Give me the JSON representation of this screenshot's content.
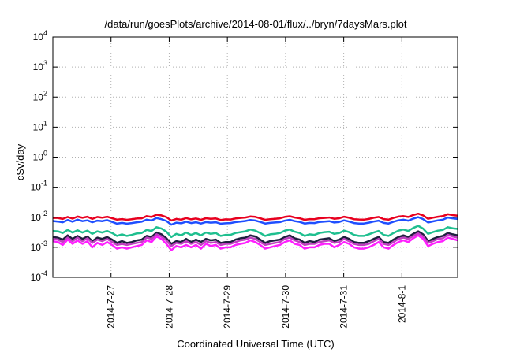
{
  "chart_data": {
    "type": "line",
    "title": "/data/run/goesPlots/archive/2014-08-01/flux/../bryn/7daysMars.plot",
    "xlabel": "Coordinated Universal Time (UTC)",
    "ylabel": "cSv/day",
    "yscale": "log",
    "ylim": [
      0.0001,
      10000
    ],
    "y_ticks": [
      {
        "base": "10",
        "exp": "-4",
        "value": 0.0001
      },
      {
        "base": "10",
        "exp": "-3",
        "value": 0.001
      },
      {
        "base": "10",
        "exp": "-2",
        "value": 0.01
      },
      {
        "base": "10",
        "exp": "-1",
        "value": 0.1
      },
      {
        "base": "10",
        "exp": "0",
        "value": 1
      },
      {
        "base": "10",
        "exp": "1",
        "value": 10
      },
      {
        "base": "10",
        "exp": "2",
        "value": 100
      },
      {
        "base": "10",
        "exp": "3",
        "value": 1000
      },
      {
        "base": "10",
        "exp": "4",
        "value": 10000
      }
    ],
    "xlim": [
      "2014-07-26 00:00",
      "2014-08-01 23:00"
    ],
    "x_ticks": [
      "2014-7-27",
      "2014-7-28",
      "2014-7-29",
      "2014-7-30",
      "2014-7-31",
      "2014-8-1"
    ],
    "grid": true,
    "series": [
      {
        "color": "#e8001f",
        "values": [
          0.0095,
          0.0095,
          0.0088,
          0.0102,
          0.009,
          0.0105,
          0.0096,
          0.0104,
          0.0088,
          0.0102,
          0.0097,
          0.0104,
          0.0093,
          0.0083,
          0.0087,
          0.0082,
          0.0086,
          0.0091,
          0.0092,
          0.0109,
          0.0102,
          0.0122,
          0.0115,
          0.0101,
          0.0078,
          0.0088,
          0.0083,
          0.0094,
          0.0085,
          0.0091,
          0.0082,
          0.0093,
          0.0089,
          0.0091,
          0.0081,
          0.0085,
          0.0084,
          0.0091,
          0.0095,
          0.0098,
          0.0106,
          0.0103,
          0.0092,
          0.0082,
          0.0086,
          0.0089,
          0.0092,
          0.0103,
          0.0108,
          0.0098,
          0.0093,
          0.0082,
          0.0087,
          0.0086,
          0.0093,
          0.0095,
          0.0098,
          0.0089,
          0.0093,
          0.0104,
          0.0096,
          0.0086,
          0.0084,
          0.0083,
          0.0088,
          0.0096,
          0.0102,
          0.0087,
          0.0083,
          0.0095,
          0.0105,
          0.0109,
          0.0102,
          0.0119,
          0.0132,
          0.0115,
          0.0089,
          0.0097,
          0.0104,
          0.0109,
          0.0126,
          0.0118,
          0.0113
        ]
      },
      {
        "color": "#1f4fff",
        "values": [
          0.0075,
          0.0072,
          0.0068,
          0.0081,
          0.0071,
          0.0083,
          0.0074,
          0.0079,
          0.0068,
          0.0077,
          0.0074,
          0.008,
          0.007,
          0.0061,
          0.0065,
          0.0061,
          0.0064,
          0.0068,
          0.0071,
          0.0083,
          0.0078,
          0.0094,
          0.0086,
          0.0075,
          0.0057,
          0.0066,
          0.0063,
          0.0071,
          0.0064,
          0.0068,
          0.0062,
          0.0069,
          0.0066,
          0.0068,
          0.0061,
          0.0063,
          0.0064,
          0.0069,
          0.0072,
          0.0075,
          0.0081,
          0.0078,
          0.007,
          0.0062,
          0.0065,
          0.0067,
          0.0069,
          0.0077,
          0.0082,
          0.0074,
          0.007,
          0.0062,
          0.0065,
          0.0064,
          0.007,
          0.0072,
          0.0074,
          0.0067,
          0.007,
          0.0079,
          0.0072,
          0.0064,
          0.0062,
          0.0062,
          0.0066,
          0.0072,
          0.0077,
          0.0065,
          0.0062,
          0.0071,
          0.0079,
          0.0083,
          0.0077,
          0.009,
          0.0101,
          0.0087,
          0.0067,
          0.0073,
          0.0079,
          0.0083,
          0.0098,
          0.0092,
          0.0088
        ]
      },
      {
        "color": "#1fbf8f",
        "values": [
          0.0035,
          0.0034,
          0.003,
          0.0038,
          0.0031,
          0.0037,
          0.0031,
          0.0036,
          0.0028,
          0.0034,
          0.0031,
          0.0035,
          0.003,
          0.0024,
          0.0027,
          0.0024,
          0.0026,
          0.0029,
          0.003,
          0.0038,
          0.0035,
          0.0047,
          0.0042,
          0.0033,
          0.0022,
          0.0028,
          0.0025,
          0.0031,
          0.0026,
          0.003,
          0.0025,
          0.0031,
          0.0028,
          0.003,
          0.0024,
          0.0026,
          0.0026,
          0.003,
          0.0032,
          0.0034,
          0.0039,
          0.0036,
          0.003,
          0.0024,
          0.0027,
          0.0028,
          0.003,
          0.0036,
          0.0039,
          0.0033,
          0.003,
          0.0024,
          0.0027,
          0.0026,
          0.003,
          0.0032,
          0.0033,
          0.0028,
          0.003,
          0.0036,
          0.0032,
          0.0026,
          0.0024,
          0.0024,
          0.0027,
          0.0031,
          0.0035,
          0.0026,
          0.0024,
          0.003,
          0.0036,
          0.0039,
          0.0035,
          0.0044,
          0.0052,
          0.0042,
          0.0028,
          0.0032,
          0.0036,
          0.0038,
          0.0047,
          0.0043,
          0.0041
        ]
      },
      {
        "color": "#1f1f3f",
        "values": [
          0.0022,
          0.0021,
          0.0018,
          0.0025,
          0.0019,
          0.0024,
          0.0019,
          0.0023,
          0.0016,
          0.0021,
          0.0019,
          0.0022,
          0.0018,
          0.0014,
          0.0016,
          0.0014,
          0.0015,
          0.0017,
          0.0018,
          0.0024,
          0.0022,
          0.0031,
          0.0027,
          0.002,
          0.0013,
          0.0016,
          0.0015,
          0.0019,
          0.0015,
          0.0018,
          0.0015,
          0.0019,
          0.0017,
          0.0018,
          0.0014,
          0.0015,
          0.0015,
          0.0018,
          0.002,
          0.0021,
          0.0025,
          0.0023,
          0.0018,
          0.0014,
          0.0016,
          0.0017,
          0.0018,
          0.0022,
          0.0025,
          0.002,
          0.0018,
          0.0014,
          0.0016,
          0.0015,
          0.0018,
          0.0019,
          0.002,
          0.0016,
          0.0018,
          0.0022,
          0.0019,
          0.0015,
          0.0014,
          0.0014,
          0.0016,
          0.0019,
          0.0022,
          0.0015,
          0.0014,
          0.0018,
          0.0022,
          0.0025,
          0.0022,
          0.0028,
          0.0034,
          0.0027,
          0.0016,
          0.0019,
          0.0022,
          0.0024,
          0.003,
          0.0027,
          0.0025
        ]
      },
      {
        "color": "#c040c0",
        "values": [
          0.0019,
          0.0018,
          0.0015,
          0.0021,
          0.0016,
          0.0021,
          0.0016,
          0.002,
          0.0014,
          0.0018,
          0.0016,
          0.0019,
          0.0015,
          0.0012,
          0.0013,
          0.0012,
          0.0013,
          0.0014,
          0.0015,
          0.0021,
          0.0019,
          0.0027,
          0.0023,
          0.0017,
          0.0011,
          0.0014,
          0.0013,
          0.0016,
          0.0013,
          0.0015,
          0.0012,
          0.0016,
          0.0014,
          0.0015,
          0.0012,
          0.0013,
          0.0013,
          0.0015,
          0.0017,
          0.0018,
          0.0021,
          0.0019,
          0.0015,
          0.0012,
          0.0013,
          0.0014,
          0.0015,
          0.0019,
          0.0021,
          0.0017,
          0.0015,
          0.0012,
          0.0013,
          0.0013,
          0.0015,
          0.0016,
          0.0017,
          0.0014,
          0.0015,
          0.0019,
          0.0016,
          0.0013,
          0.0012,
          0.0012,
          0.0013,
          0.0016,
          0.0019,
          0.0013,
          0.0012,
          0.0015,
          0.0019,
          0.0021,
          0.0019,
          0.0024,
          0.0029,
          0.0023,
          0.0014,
          0.0016,
          0.0019,
          0.002,
          0.0026,
          0.0023,
          0.0021
        ]
      },
      {
        "color": "#ff1fff",
        "values": [
          0.0016,
          0.0015,
          0.0012,
          0.0018,
          0.0013,
          0.0017,
          0.0013,
          0.0016,
          0.001,
          0.0014,
          0.0012,
          0.0015,
          0.0012,
          0.0009,
          0.001,
          0.0009,
          0.001,
          0.0011,
          0.0012,
          0.0017,
          0.0015,
          0.0023,
          0.0019,
          0.0013,
          0.0008,
          0.0011,
          0.001,
          0.0012,
          0.001,
          0.0012,
          0.0009,
          0.0013,
          0.0011,
          0.0012,
          0.0009,
          0.001,
          0.001,
          0.0012,
          0.0013,
          0.0014,
          0.0017,
          0.0015,
          0.0012,
          0.0009,
          0.001,
          0.0011,
          0.0012,
          0.0015,
          0.0017,
          0.0013,
          0.0012,
          0.0009,
          0.001,
          0.001,
          0.0012,
          0.0013,
          0.0013,
          0.001,
          0.0012,
          0.0015,
          0.0013,
          0.001,
          0.0009,
          0.0009,
          0.001,
          0.0012,
          0.0015,
          0.001,
          0.0009,
          0.0012,
          0.0015,
          0.0017,
          0.0015,
          0.002,
          0.0025,
          0.0019,
          0.0011,
          0.0013,
          0.0015,
          0.0016,
          0.0021,
          0.0019,
          0.0017
        ]
      }
    ]
  }
}
